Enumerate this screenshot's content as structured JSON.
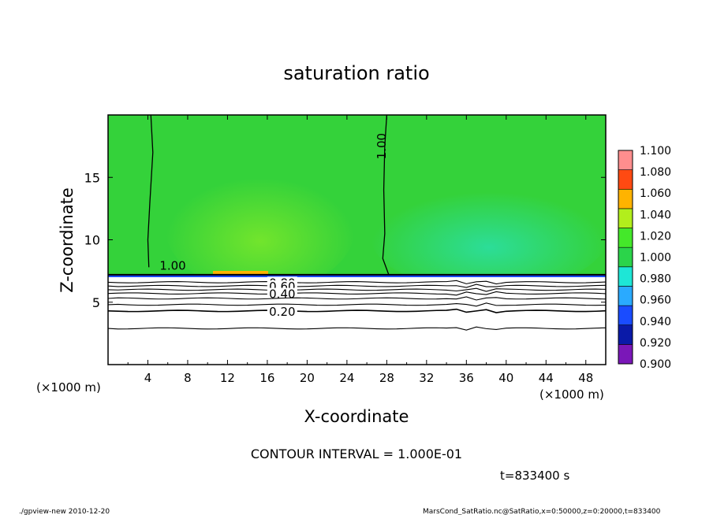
{
  "chart_data": {
    "type": "heatmap",
    "title": "saturation ratio",
    "xlabel": "X-coordinate",
    "ylabel": "Z-coordinate",
    "x_unit_left": "(×1000 m)",
    "x_unit_right": "(×1000 m)",
    "xlim": [
      0,
      50
    ],
    "ylim": [
      0,
      20
    ],
    "x_ticks": [
      "4",
      "8",
      "12",
      "16",
      "20",
      "24",
      "28",
      "32",
      "36",
      "40",
      "44",
      "48"
    ],
    "y_ticks": [
      "5",
      "10",
      "15"
    ],
    "colorbar": {
      "levels": [
        "0.900",
        "0.920",
        "0.940",
        "0.960",
        "0.980",
        "1.000",
        "1.020",
        "1.040",
        "1.060",
        "1.080",
        "1.100"
      ],
      "colors": [
        "#7a17b8",
        "#0a1aa8",
        "#1a4cff",
        "#2aaaff",
        "#1ee6d6",
        "#2bd44a",
        "#44e82a",
        "#b2ee1c",
        "#ffb300",
        "#ff4a12",
        "#ff8e8e"
      ]
    },
    "background_color": "#34d23a",
    "surface_z": 7.2,
    "contours_air": [
      {
        "label": "1.00",
        "label_x": 6.5,
        "label_z": 7.6,
        "x": [
          4.3,
          4.5,
          4.2,
          4.0,
          4.1
        ],
        "z": [
          20,
          17,
          13,
          10,
          7.8
        ]
      },
      {
        "label": "1.00",
        "label_x": 27.9,
        "label_z": 17.5,
        "x": [
          28.0,
          27.8,
          27.7,
          27.8,
          27.6,
          28.2
        ],
        "z": [
          20,
          17.5,
          14,
          10.5,
          8.5,
          7.2
        ]
      }
    ],
    "contours_ground": [
      {
        "label": "0.80",
        "z": 6.6
      },
      {
        "label": "0.60",
        "z": 6.3
      },
      {
        "label": "",
        "z": 6.0
      },
      {
        "label": "0.40",
        "z": 5.7
      },
      {
        "label": "",
        "z": 5.3
      },
      {
        "label": "",
        "z": 4.8
      },
      {
        "label": "0.20",
        "z": 4.3
      },
      {
        "label": "",
        "z": 2.9
      }
    ],
    "contour_interval_text": "CONTOUR INTERVAL = 1.000E-01",
    "time_text": "t=833400 s"
  },
  "footer": {
    "left": "./gpview-new  2010-12-20",
    "right": "MarsCond_SatRatio.nc@SatRatio,x=0:50000,z=0:20000,t=833400"
  }
}
